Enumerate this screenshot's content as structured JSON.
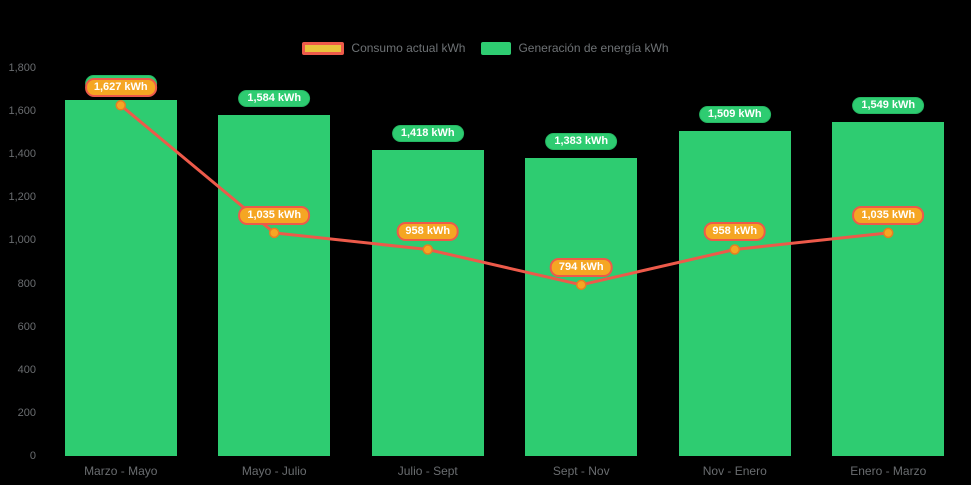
{
  "chart_data": {
    "type": "combo",
    "title": "",
    "categories": [
      "Marzo - Mayo",
      "Mayo - Julio",
      "Julio - Sept",
      "Sept - Nov",
      "Nov - Enero",
      "Enero - Marzo"
    ],
    "series": [
      {
        "name": "Consumo actual kWh",
        "type": "line",
        "values": [
          1627,
          1035,
          958,
          794,
          958,
          1035
        ],
        "labels": [
          "1,627 kWh",
          "1,035 kWh",
          "958 kWh",
          "794 kWh",
          "958 kWh",
          "1,035 kWh"
        ]
      },
      {
        "name": "Generación de energía kWh",
        "type": "bar",
        "values": [
          1650,
          1584,
          1418,
          1383,
          1509,
          1549
        ],
        "labels": [
          "1,650 kWh",
          "1,584 kWh",
          "1,418 kWh",
          "1,383 kWh",
          "1,509 kWh",
          "1,549 kWh"
        ],
        "first_label_occluded": true
      }
    ],
    "y_axis": {
      "min": 0,
      "max": 1800,
      "step": 200,
      "tick_labels": [
        "0",
        "200",
        "400",
        "600",
        "800",
        "1,000",
        "1,200",
        "1,400",
        "1,600",
        "1,800"
      ]
    },
    "legend_position": "top-center",
    "grid": false,
    "colors": {
      "background": "#000000",
      "bar": "#2ecc71",
      "bar_pill_border": "#25b863",
      "line": "#ed5a4a",
      "marker_fill": "#f5a623",
      "marker_border": "#e67e22",
      "value_pill_fill": "#f5a623",
      "value_pill_border": "#ed5a4a",
      "legend_line_swatch_fill": "#e9c23b",
      "axis_text": "#6a6d70"
    }
  }
}
